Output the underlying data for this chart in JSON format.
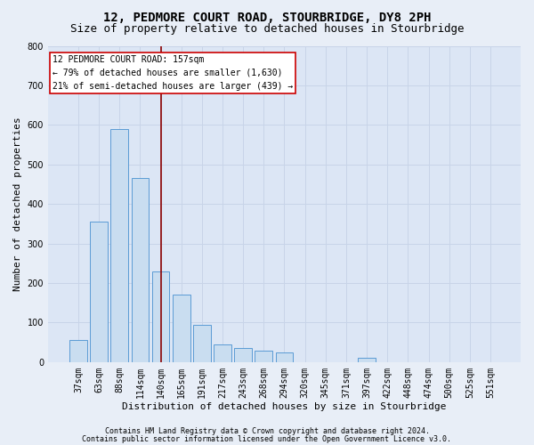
{
  "title": "12, PEDMORE COURT ROAD, STOURBRIDGE, DY8 2PH",
  "subtitle": "Size of property relative to detached houses in Stourbridge",
  "xlabel": "Distribution of detached houses by size in Stourbridge",
  "ylabel": "Number of detached properties",
  "footer_line1": "Contains HM Land Registry data © Crown copyright and database right 2024.",
  "footer_line2": "Contains public sector information licensed under the Open Government Licence v3.0.",
  "categories": [
    "37sqm",
    "63sqm",
    "88sqm",
    "114sqm",
    "140sqm",
    "165sqm",
    "191sqm",
    "217sqm",
    "243sqm",
    "268sqm",
    "294sqm",
    "320sqm",
    "345sqm",
    "371sqm",
    "397sqm",
    "422sqm",
    "448sqm",
    "474sqm",
    "500sqm",
    "525sqm",
    "551sqm"
  ],
  "values": [
    55,
    355,
    590,
    465,
    230,
    170,
    95,
    45,
    35,
    30,
    25,
    0,
    0,
    0,
    10,
    0,
    0,
    0,
    0,
    0,
    0
  ],
  "bar_color": "#c9ddf0",
  "bar_edge_color": "#5b9bd5",
  "bar_width": 0.85,
  "vline_x": 4.0,
  "vline_color": "#8B0000",
  "annotation_text_line1": "12 PEDMORE COURT ROAD: 157sqm",
  "annotation_text_line2": "← 79% of detached houses are smaller (1,630)",
  "annotation_text_line3": "21% of semi-detached houses are larger (439) →",
  "annotation_box_facecolor": "#ffffff",
  "annotation_box_edgecolor": "#cc0000",
  "ylim": [
    0,
    800
  ],
  "yticks": [
    0,
    100,
    200,
    300,
    400,
    500,
    600,
    700,
    800
  ],
  "grid_color": "#c8d4e8",
  "bg_color": "#dce6f5",
  "fig_facecolor": "#e8eef7",
  "title_fontsize": 10,
  "subtitle_fontsize": 9,
  "xlabel_fontsize": 8,
  "ylabel_fontsize": 8,
  "tick_fontsize": 7,
  "annotation_fontsize": 7,
  "footer_fontsize": 6
}
